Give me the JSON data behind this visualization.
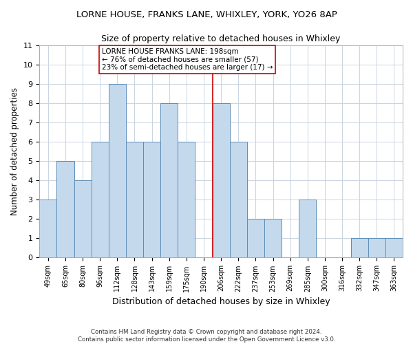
{
  "title": "LORNE HOUSE, FRANKS LANE, WHIXLEY, YORK, YO26 8AP",
  "subtitle": "Size of property relative to detached houses in Whixley",
  "xlabel": "Distribution of detached houses by size in Whixley",
  "ylabel": "Number of detached properties",
  "bar_labels": [
    "49sqm",
    "65sqm",
    "80sqm",
    "96sqm",
    "112sqm",
    "128sqm",
    "143sqm",
    "159sqm",
    "175sqm",
    "190sqm",
    "206sqm",
    "222sqm",
    "237sqm",
    "253sqm",
    "269sqm",
    "285sqm",
    "300sqm",
    "316sqm",
    "332sqm",
    "347sqm",
    "363sqm"
  ],
  "bar_values": [
    3,
    5,
    4,
    6,
    9,
    6,
    6,
    8,
    6,
    0,
    8,
    6,
    2,
    2,
    0,
    3,
    0,
    0,
    1,
    1,
    1
  ],
  "bar_color": "#c5d9ed",
  "bar_edge_color": "#5b8db8",
  "highlight_line_color": "#cc0000",
  "annotation_text": "LORNE HOUSE FRANKS LANE: 198sqm\n← 76% of detached houses are smaller (57)\n23% of semi-detached houses are larger (17) →",
  "annotation_box_color": "#ffffff",
  "annotation_box_edge": "#cc0000",
  "ylim": [
    0,
    11
  ],
  "yticks": [
    0,
    1,
    2,
    3,
    4,
    5,
    6,
    7,
    8,
    9,
    10,
    11
  ],
  "footer": "Contains HM Land Registry data © Crown copyright and database right 2024.\nContains public sector information licensed under the Open Government Licence v3.0.",
  "bg_color": "#ffffff",
  "grid_color": "#c8d4e0"
}
